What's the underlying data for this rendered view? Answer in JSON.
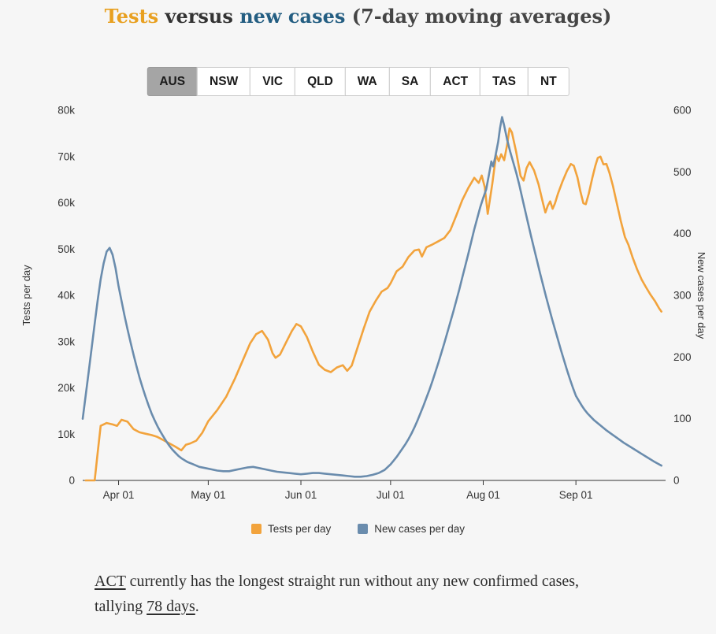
{
  "page": {
    "background": "#f6f6f6"
  },
  "title": {
    "tests": "Tests",
    "versus": " versus ",
    "new_cases": "new cases",
    "suffix": " (7-day moving averages)"
  },
  "tabs": {
    "items": [
      "AUS",
      "NSW",
      "VIC",
      "QLD",
      "WA",
      "SA",
      "ACT",
      "TAS",
      "NT"
    ],
    "active": "AUS"
  },
  "legend": [
    {
      "label": "Tests per day",
      "color": "#F2A33C"
    },
    {
      "label": "New cases per day",
      "color": "#6A8CAD"
    }
  ],
  "footer": {
    "link_act": "ACT",
    "middle": " currently has the longest straight run without any new confirmed cases, tallying ",
    "link_days": "78 days",
    "period": "."
  },
  "colors": {
    "title_tests": "#E8A020",
    "title_new_cases": "#245E82",
    "tests_line": "#F2A33C",
    "cases_line": "#6A8CAD",
    "active_tab_bg": "#A5A5A5",
    "axis_text": "#333333"
  },
  "chart_data": {
    "type": "line",
    "title": "Tests versus new cases (7-day moving averages)",
    "x_axis": {
      "domain": [
        0,
        195
      ],
      "unit": "days (day 0 = chart start, late March)",
      "ticks": [
        {
          "day": 12,
          "label": "Apr 01"
        },
        {
          "day": 42,
          "label": "May 01"
        },
        {
          "day": 73,
          "label": "Jun 01"
        },
        {
          "day": 103,
          "label": "Jul 01"
        },
        {
          "day": 134,
          "label": "Aug 01"
        },
        {
          "day": 165,
          "label": "Sep 01"
        }
      ]
    },
    "left_axis": {
      "label": "Tests per day",
      "range": [
        0,
        80000
      ],
      "tick_values": [
        0,
        10000,
        20000,
        30000,
        40000,
        50000,
        60000,
        70000,
        80000
      ],
      "tick_labels": [
        "0",
        "10k",
        "20k",
        "30k",
        "40k",
        "50k",
        "60k",
        "70k",
        "80k"
      ]
    },
    "right_axis": {
      "label": "New cases per day",
      "range": [
        0,
        600
      ],
      "tick_values": [
        0,
        100,
        200,
        300,
        400,
        500,
        600
      ],
      "tick_labels": [
        "0",
        "100",
        "200",
        "300",
        "400",
        "500",
        "600"
      ]
    },
    "grid": false,
    "legend_position": "bottom",
    "series": [
      {
        "name": "Tests per day",
        "axis": "left",
        "color": "#F2A33C",
        "points": [
          [
            1,
            0
          ],
          [
            4,
            0
          ],
          [
            5,
            6000
          ],
          [
            6,
            11800
          ],
          [
            8,
            12400
          ],
          [
            10,
            12100
          ],
          [
            11.5,
            11800
          ],
          [
            13,
            13100
          ],
          [
            15,
            12700
          ],
          [
            17,
            11100
          ],
          [
            19,
            10400
          ],
          [
            21,
            10100
          ],
          [
            23,
            9800
          ],
          [
            25,
            9400
          ],
          [
            27,
            8700
          ],
          [
            29,
            8000
          ],
          [
            31,
            7300
          ],
          [
            33,
            6500
          ],
          [
            34.5,
            7700
          ],
          [
            36,
            8000
          ],
          [
            38,
            8600
          ],
          [
            40,
            10300
          ],
          [
            42,
            12800
          ],
          [
            45,
            15200
          ],
          [
            48,
            18100
          ],
          [
            51,
            22100
          ],
          [
            54,
            26600
          ],
          [
            56,
            29600
          ],
          [
            58,
            31600
          ],
          [
            60,
            32300
          ],
          [
            62,
            30400
          ],
          [
            63.5,
            27500
          ],
          [
            64.5,
            26500
          ],
          [
            66,
            27200
          ],
          [
            68,
            29800
          ],
          [
            70,
            32300
          ],
          [
            71.5,
            33800
          ],
          [
            73,
            33300
          ],
          [
            75,
            31000
          ],
          [
            77,
            27800
          ],
          [
            79,
            25000
          ],
          [
            81,
            23900
          ],
          [
            83,
            23400
          ],
          [
            85,
            24400
          ],
          [
            87,
            24900
          ],
          [
            88.5,
            23700
          ],
          [
            90,
            24800
          ],
          [
            92,
            28800
          ],
          [
            94,
            32800
          ],
          [
            96,
            36500
          ],
          [
            98,
            38800
          ],
          [
            100,
            40800
          ],
          [
            102,
            41600
          ],
          [
            103,
            42600
          ],
          [
            105,
            45200
          ],
          [
            107,
            46200
          ],
          [
            109,
            48300
          ],
          [
            111,
            49700
          ],
          [
            112.5,
            49900
          ],
          [
            113.5,
            48400
          ],
          [
            115,
            50400
          ],
          [
            117,
            51000
          ],
          [
            119,
            51700
          ],
          [
            121,
            52400
          ],
          [
            123,
            54100
          ],
          [
            125,
            57300
          ],
          [
            127,
            60600
          ],
          [
            129,
            63200
          ],
          [
            131,
            65400
          ],
          [
            132.5,
            64300
          ],
          [
            133.5,
            65900
          ],
          [
            134.5,
            63400
          ],
          [
            135.5,
            57600
          ],
          [
            137,
            64000
          ],
          [
            138.3,
            70300
          ],
          [
            139.2,
            69000
          ],
          [
            140,
            70500
          ],
          [
            141,
            69200
          ],
          [
            142,
            72600
          ],
          [
            142.8,
            76100
          ],
          [
            143.6,
            75200
          ],
          [
            145,
            71000
          ],
          [
            146.5,
            65800
          ],
          [
            147.5,
            64800
          ],
          [
            148.5,
            67500
          ],
          [
            149.5,
            68800
          ],
          [
            151,
            67000
          ],
          [
            152.5,
            64000
          ],
          [
            154,
            59900
          ],
          [
            154.8,
            57900
          ],
          [
            155.6,
            59400
          ],
          [
            156.4,
            60300
          ],
          [
            157.2,
            58700
          ],
          [
            158,
            59900
          ],
          [
            159,
            62000
          ],
          [
            160.5,
            64600
          ],
          [
            162,
            66900
          ],
          [
            163.3,
            68400
          ],
          [
            164.3,
            68000
          ],
          [
            165.5,
            65500
          ],
          [
            166.5,
            62500
          ],
          [
            167.5,
            59900
          ],
          [
            168.3,
            59700
          ],
          [
            169.3,
            62000
          ],
          [
            170.5,
            65400
          ],
          [
            171.5,
            68000
          ],
          [
            172.3,
            69700
          ],
          [
            173.2,
            70000
          ],
          [
            174.2,
            68300
          ],
          [
            175.2,
            68400
          ],
          [
            176.2,
            66500
          ],
          [
            177.4,
            63600
          ],
          [
            178.6,
            60100
          ],
          [
            180,
            56100
          ],
          [
            181.4,
            52600
          ],
          [
            182.6,
            50900
          ],
          [
            184,
            48100
          ],
          [
            185.5,
            45600
          ],
          [
            187,
            43400
          ],
          [
            188.5,
            41700
          ],
          [
            190,
            40100
          ],
          [
            191.5,
            38700
          ],
          [
            192.8,
            37200
          ],
          [
            193.6,
            36500
          ]
        ]
      },
      {
        "name": "New cases per day",
        "axis": "right",
        "color": "#6A8CAD",
        "points": [
          [
            0,
            100
          ],
          [
            1,
            138
          ],
          [
            2,
            176
          ],
          [
            3,
            215
          ],
          [
            4,
            254
          ],
          [
            5,
            292
          ],
          [
            6,
            326
          ],
          [
            7,
            352
          ],
          [
            8,
            371
          ],
          [
            9,
            377
          ],
          [
            10,
            366
          ],
          [
            11,
            344
          ],
          [
            12,
            315
          ],
          [
            13,
            291
          ],
          [
            14,
            267
          ],
          [
            15,
            245
          ],
          [
            16,
            224
          ],
          [
            17,
            204
          ],
          [
            18,
            185
          ],
          [
            19,
            167
          ],
          [
            20,
            151
          ],
          [
            21,
            136
          ],
          [
            22,
            122
          ],
          [
            23,
            109
          ],
          [
            24,
            98
          ],
          [
            25,
            88
          ],
          [
            26,
            79
          ],
          [
            27,
            71
          ],
          [
            28,
            63
          ],
          [
            29,
            56
          ],
          [
            30,
            50
          ],
          [
            31,
            45
          ],
          [
            32,
            40
          ],
          [
            33,
            36
          ],
          [
            35,
            30
          ],
          [
            37,
            26
          ],
          [
            39,
            22
          ],
          [
            41,
            20
          ],
          [
            43,
            18
          ],
          [
            45,
            16
          ],
          [
            47,
            15
          ],
          [
            49,
            15
          ],
          [
            51,
            17
          ],
          [
            53,
            19
          ],
          [
            55,
            21
          ],
          [
            57,
            22
          ],
          [
            59,
            20
          ],
          [
            61,
            18
          ],
          [
            63,
            16
          ],
          [
            65,
            14
          ],
          [
            67,
            13
          ],
          [
            69,
            12
          ],
          [
            71,
            11
          ],
          [
            73,
            10
          ],
          [
            75,
            11
          ],
          [
            77,
            12
          ],
          [
            79,
            12
          ],
          [
            81,
            11
          ],
          [
            83,
            10
          ],
          [
            85,
            9
          ],
          [
            87,
            8
          ],
          [
            89,
            7
          ],
          [
            91,
            6
          ],
          [
            93,
            6
          ],
          [
            95,
            7
          ],
          [
            97,
            9
          ],
          [
            99,
            12
          ],
          [
            101,
            17
          ],
          [
            103,
            26
          ],
          [
            104,
            32
          ],
          [
            105,
            38
          ],
          [
            106,
            45
          ],
          [
            107,
            52
          ],
          [
            108,
            59
          ],
          [
            109,
            67
          ],
          [
            110,
            76
          ],
          [
            111,
            86
          ],
          [
            112,
            97
          ],
          [
            113,
            109
          ],
          [
            114,
            121
          ],
          [
            115,
            134
          ],
          [
            116,
            147
          ],
          [
            117,
            161
          ],
          [
            118,
            176
          ],
          [
            119,
            191
          ],
          [
            120,
            207
          ],
          [
            121,
            223
          ],
          [
            122,
            240
          ],
          [
            123,
            257
          ],
          [
            124,
            274
          ],
          [
            125,
            292
          ],
          [
            126,
            310
          ],
          [
            127,
            329
          ],
          [
            128,
            348
          ],
          [
            129,
            367
          ],
          [
            130,
            387
          ],
          [
            131,
            407
          ],
          [
            132,
            425
          ],
          [
            133,
            443
          ],
          [
            134,
            458
          ],
          [
            135,
            472
          ],
          [
            136,
            498
          ],
          [
            136.7,
            517
          ],
          [
            137.3,
            509
          ],
          [
            138,
            524
          ],
          [
            139,
            549
          ],
          [
            139.6,
            571
          ],
          [
            140.3,
            589
          ],
          [
            141,
            575
          ],
          [
            142,
            552
          ],
          [
            143,
            533
          ],
          [
            144,
            516
          ],
          [
            145,
            499
          ],
          [
            146,
            480
          ],
          [
            147,
            459
          ],
          [
            148,
            438
          ],
          [
            149,
            417
          ],
          [
            150,
            396
          ],
          [
            151,
            376
          ],
          [
            152,
            356
          ],
          [
            153,
            336
          ],
          [
            154,
            317
          ],
          [
            155,
            298
          ],
          [
            156,
            280
          ],
          [
            157,
            262
          ],
          [
            158,
            245
          ],
          [
            159,
            228
          ],
          [
            160,
            211
          ],
          [
            161,
            195
          ],
          [
            162,
            179
          ],
          [
            163,
            164
          ],
          [
            164,
            150
          ],
          [
            165,
            137
          ],
          [
            166,
            129
          ],
          [
            167,
            121
          ],
          [
            168,
            114
          ],
          [
            169,
            108
          ],
          [
            170,
            103
          ],
          [
            171,
            98
          ],
          [
            172,
            94
          ],
          [
            173,
            90
          ],
          [
            174,
            86
          ],
          [
            175,
            82
          ],
          [
            177,
            75
          ],
          [
            179,
            68
          ],
          [
            181,
            61
          ],
          [
            183,
            55
          ],
          [
            185,
            49
          ],
          [
            187,
            43
          ],
          [
            189,
            37
          ],
          [
            191,
            31
          ],
          [
            192.5,
            27
          ],
          [
            193.6,
            24
          ]
        ]
      }
    ]
  }
}
